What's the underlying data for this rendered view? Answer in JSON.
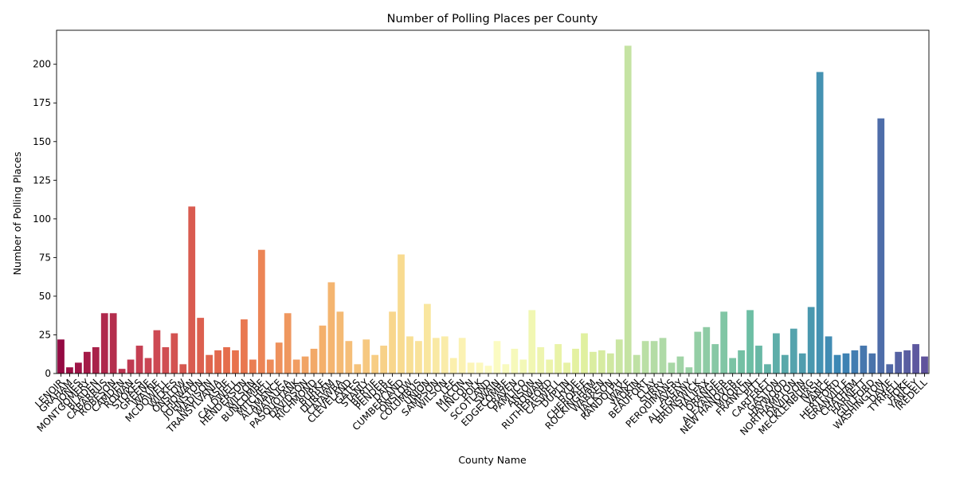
{
  "chart_data": {
    "type": "bar",
    "title": "Number of Polling Places per County",
    "xlabel": "County Name",
    "ylabel": "Number of Polling Places",
    "ylim": [
      0,
      222
    ],
    "yticks": [
      0,
      25,
      50,
      75,
      100,
      125,
      150,
      175,
      200
    ],
    "grid": false,
    "legend": "none",
    "palette": "Spectral",
    "categories": [
      "LENOIR",
      "GRAHAM",
      "JONES",
      "MONTGOMERY",
      "BLADEN",
      "CABARRUS",
      "ROBESON",
      "CAMDEN",
      "ROWAN",
      "STOKES",
      "GREENE",
      "WAYNE",
      "MCDOWELL",
      "WILKES",
      "ONSLOW",
      "CHOWAN",
      "JOHNSTON",
      "MADISON",
      "TRANSYLVANIA",
      "ASHE",
      "CALDWELL",
      "HENDERSON",
      "WILSON",
      "BUNCOMBE",
      "MITCHELL",
      "ALAMANCE",
      "WATAUGA",
      "PASQUOTANK",
      "DAVIDSON",
      "RICHMOND",
      "BURKE",
      "DURHAM",
      "CATAWBA",
      "CLEVELAND",
      "GATES",
      "STANLY",
      "BERTIE",
      "PENDER",
      "DARE",
      "CUMBERLAND",
      "ONSLOW",
      "COLUMBUS",
      "UNION",
      "SAMPSON",
      "WILSON",
      "LEE",
      "MACON",
      "LINCOLN",
      "POLK",
      "SCOTLAND",
      "SWAIN",
      "EDGECOMBE",
      "CRAVEN",
      "PAMLICO",
      "ANSON",
      "ROWAN",
      "RUTHERFORD",
      "CASWELL",
      "DUPLIN",
      "HYDE",
      "CHEROKEE",
      "ROCKINGHAM",
      "WARREN",
      "JACKSON",
      "RANDOLPH",
      "WAKE",
      "YADKIN",
      "BEAUFORT",
      "CLAY",
      "SURRY",
      "PERQUIMANS",
      "AVERY",
      "ALLEGHANY",
      "BRUNSWICK",
      "HALIFAX",
      "ORANGE",
      "ALEXANDER",
      "NEW HANOVER",
      "MOORE",
      "FRANKLIN",
      "PITT",
      "CARTERET",
      "GASTON",
      "HAYWOOD",
      "NORTHAMPTON",
      "DAVIDSON",
      "MECKLENBURG",
      "NASH",
      "VANCE",
      "HERTFORD",
      "GRANVILLE",
      "CHATHAM",
      "HARNETT",
      "GUILFORD",
      "WASHINGTON",
      "DAVIE",
      "TYRRELL",
      "HOKE",
      "YANCEY",
      "IREDELL"
    ],
    "values": [
      22,
      4,
      7,
      14,
      17,
      39,
      39,
      3,
      9,
      18,
      10,
      28,
      17,
      26,
      6,
      108,
      36,
      12,
      15,
      17,
      15,
      35,
      9,
      80,
      9,
      20,
      39,
      9,
      11,
      16,
      31,
      59,
      40,
      21,
      6,
      22,
      12,
      18,
      40,
      77,
      24,
      21,
      45,
      23,
      24,
      10,
      23,
      7,
      7,
      5,
      21,
      6,
      16,
      9,
      41,
      17,
      9,
      19,
      7,
      16,
      26,
      14,
      15,
      13,
      22,
      212,
      12,
      21,
      21,
      23,
      7,
      11,
      4,
      27,
      30,
      19,
      40,
      10,
      15,
      41,
      18,
      6,
      26,
      12,
      29,
      13,
      43,
      195,
      24,
      12,
      13,
      15,
      18,
      13,
      165,
      6,
      14,
      15,
      19,
      11
    ],
    "tick_labels_shown": [
      "LENOIR",
      "GRAHAM",
      "JONES",
      "MONTGOMERY",
      "BLADEN",
      "CABARRUS",
      "ROBESON",
      "CAMDEN",
      "ROWAN",
      "STOKES",
      "GREENE",
      "WAYNE",
      "MCDOWELL",
      "WILKES",
      "ONSLOW",
      "CHOWAN",
      "JOHNSTON",
      "MADISON",
      "TRANSYLVANIA",
      "ASHE",
      "CALDWELL",
      "HENDERSON",
      "WILSON",
      "BUNCOMBE",
      "MITCHELL",
      "ALAMANCE",
      "WATAUGA",
      "PASQUOTANK",
      "DAVIDSON",
      "RICHMOND",
      "BURKE",
      "DURHAM",
      "CATAWBA",
      "CLEVELAND",
      "GATES",
      "STANLY",
      "BERTIE",
      "PENDER",
      "DARE",
      "CUMBERLAND",
      "ONSLOW",
      "COLUMBUS",
      "UNION",
      "SAMPSON",
      "WILSON",
      "LEE",
      "MACON",
      "LINCOLN",
      "POLK",
      "SCOTLAND",
      "SWAIN",
      "EDGECOMBE",
      "CRAVEN",
      "PAMLICO",
      "ANSON",
      "ROWAN",
      "RUTHERFORD",
      "CASWELL",
      "DUPLIN",
      "HYDE",
      "CHEROKEE",
      "ROCKINGHAM",
      "WARREN",
      "JACKSON",
      "RANDOLPH",
      "WAKE",
      "YADKIN",
      "BEAUFORT",
      "CLAY",
      "SURRY",
      "PERQUIMANS",
      "AVERY",
      "ALLEGHANY",
      "BRUNSWICK",
      "HALIFAX",
      "ORANGE",
      "ALEXANDER",
      "NEW HANOVER",
      "MOORE",
      "FRANKLIN",
      "PITT",
      "CARTERET",
      "GASTON",
      "HAYWOOD",
      "NORTHAMPTON",
      "DAVIDSON",
      "MECKLENBURG",
      "NASH",
      "VANCE",
      "HERTFORD",
      "GRANVILLE",
      "CHATHAM",
      "HARNETT",
      "GUILFORD",
      "WASHINGTON",
      "DAVIE",
      "TYRRELL",
      "HOKE",
      "YANCEY",
      "IREDELL"
    ]
  }
}
